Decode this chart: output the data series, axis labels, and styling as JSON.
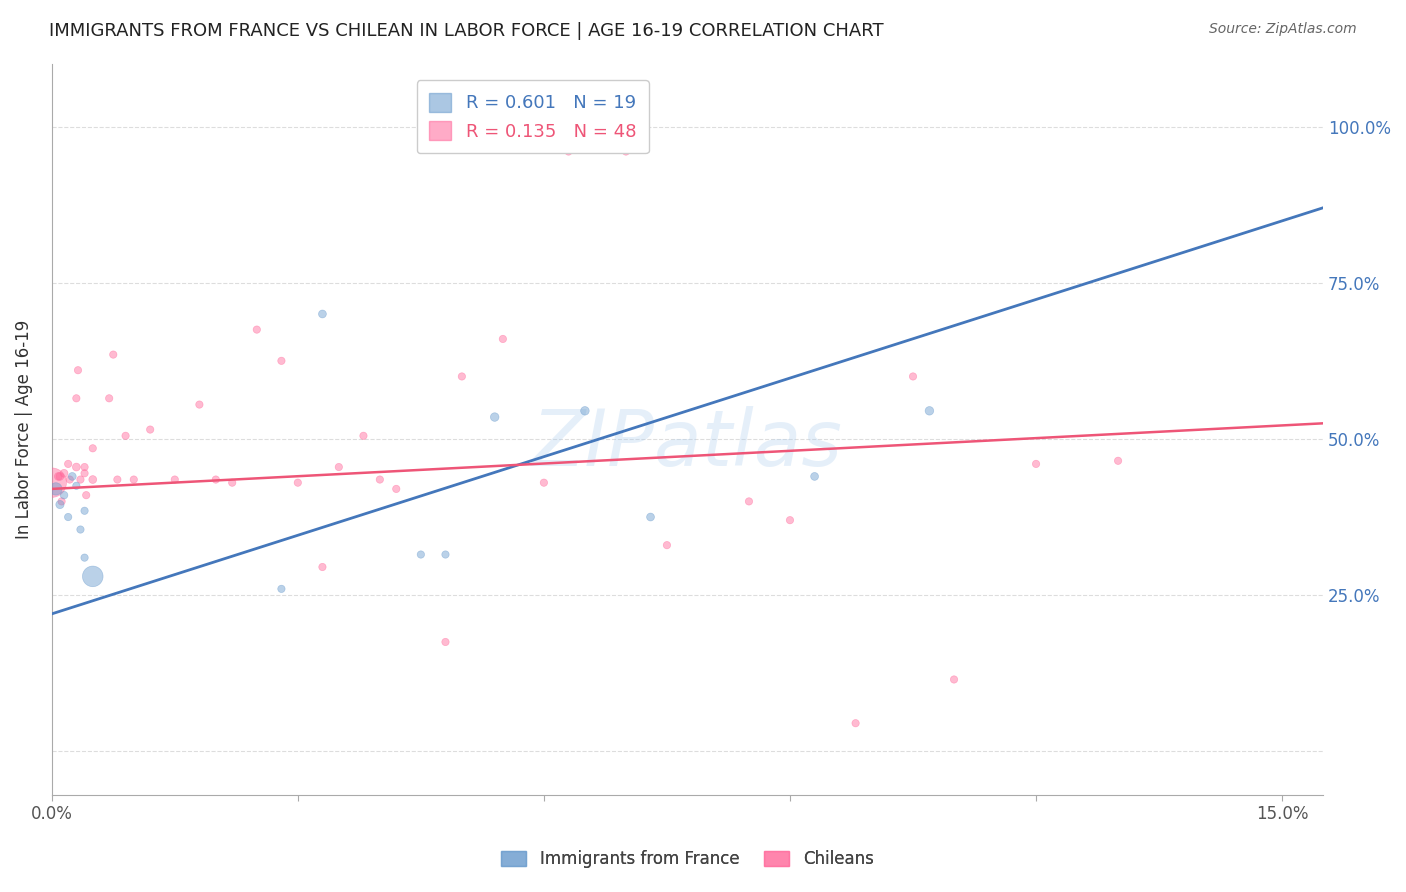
{
  "title": "IMMIGRANTS FROM FRANCE VS CHILEAN IN LABOR FORCE | AGE 16-19 CORRELATION CHART",
  "source": "Source: ZipAtlas.com",
  "ylabel": "In Labor Force | Age 16-19",
  "xlim": [
    0.0,
    0.155
  ],
  "ylim": [
    -0.07,
    1.1
  ],
  "france_color": "#6699CC",
  "chile_color": "#FF6699",
  "legend_label_france": "R = 0.601   N = 19",
  "legend_label_chile": "R = 0.135   N = 48",
  "bottom_legend_france": "Immigrants from France",
  "bottom_legend_chile": "Chileans",
  "france_x": [
    0.0005,
    0.001,
    0.0015,
    0.002,
    0.0025,
    0.003,
    0.0035,
    0.004,
    0.004,
    0.005,
    0.028,
    0.033,
    0.045,
    0.048,
    0.054,
    0.065,
    0.073,
    0.093,
    0.107
  ],
  "france_y": [
    0.42,
    0.395,
    0.41,
    0.375,
    0.44,
    0.425,
    0.355,
    0.385,
    0.31,
    0.28,
    0.26,
    0.7,
    0.315,
    0.315,
    0.535,
    0.545,
    0.375,
    0.44,
    0.545
  ],
  "france_size": [
    80,
    35,
    30,
    28,
    32,
    28,
    28,
    28,
    28,
    220,
    28,
    32,
    28,
    28,
    38,
    38,
    32,
    32,
    38
  ],
  "chile_x": [
    0.0,
    0.0008,
    0.001,
    0.0012,
    0.0015,
    0.002,
    0.0022,
    0.003,
    0.003,
    0.0032,
    0.0035,
    0.004,
    0.004,
    0.0042,
    0.005,
    0.005,
    0.007,
    0.0075,
    0.008,
    0.009,
    0.01,
    0.012,
    0.015,
    0.018,
    0.02,
    0.022,
    0.025,
    0.028,
    0.03,
    0.033,
    0.035,
    0.038,
    0.04,
    0.042,
    0.048,
    0.05,
    0.055,
    0.06,
    0.063,
    0.07,
    0.075,
    0.085,
    0.09,
    0.098,
    0.105,
    0.11,
    0.12,
    0.13
  ],
  "chile_y": [
    0.43,
    0.44,
    0.44,
    0.4,
    0.445,
    0.46,
    0.435,
    0.455,
    0.565,
    0.61,
    0.435,
    0.445,
    0.455,
    0.41,
    0.435,
    0.485,
    0.565,
    0.635,
    0.435,
    0.505,
    0.435,
    0.515,
    0.435,
    0.555,
    0.435,
    0.43,
    0.675,
    0.625,
    0.43,
    0.295,
    0.455,
    0.505,
    0.435,
    0.42,
    0.175,
    0.6,
    0.66,
    0.43,
    0.96,
    0.96,
    0.33,
    0.4,
    0.37,
    0.045,
    0.6,
    0.115,
    0.46,
    0.465
  ],
  "chile_size": [
    450,
    32,
    32,
    28,
    32,
    28,
    28,
    32,
    28,
    28,
    28,
    28,
    28,
    28,
    32,
    28,
    28,
    28,
    28,
    28,
    28,
    28,
    28,
    28,
    28,
    28,
    28,
    28,
    28,
    28,
    28,
    28,
    28,
    28,
    28,
    28,
    28,
    28,
    28,
    28,
    28,
    28,
    28,
    28,
    28,
    28,
    28,
    28
  ],
  "watermark": "ZIPatlas",
  "grid_color": "#DDDDDD",
  "background_color": "#FFFFFF",
  "france_line_color": "#4477BB",
  "chile_line_color": "#EE5577",
  "france_line_x0": 0.0,
  "france_line_y0": 0.22,
  "france_line_x1": 0.155,
  "france_line_y1": 0.87,
  "chile_line_x0": 0.0,
  "chile_line_y0": 0.42,
  "chile_line_x1": 0.155,
  "chile_line_y1": 0.525
}
